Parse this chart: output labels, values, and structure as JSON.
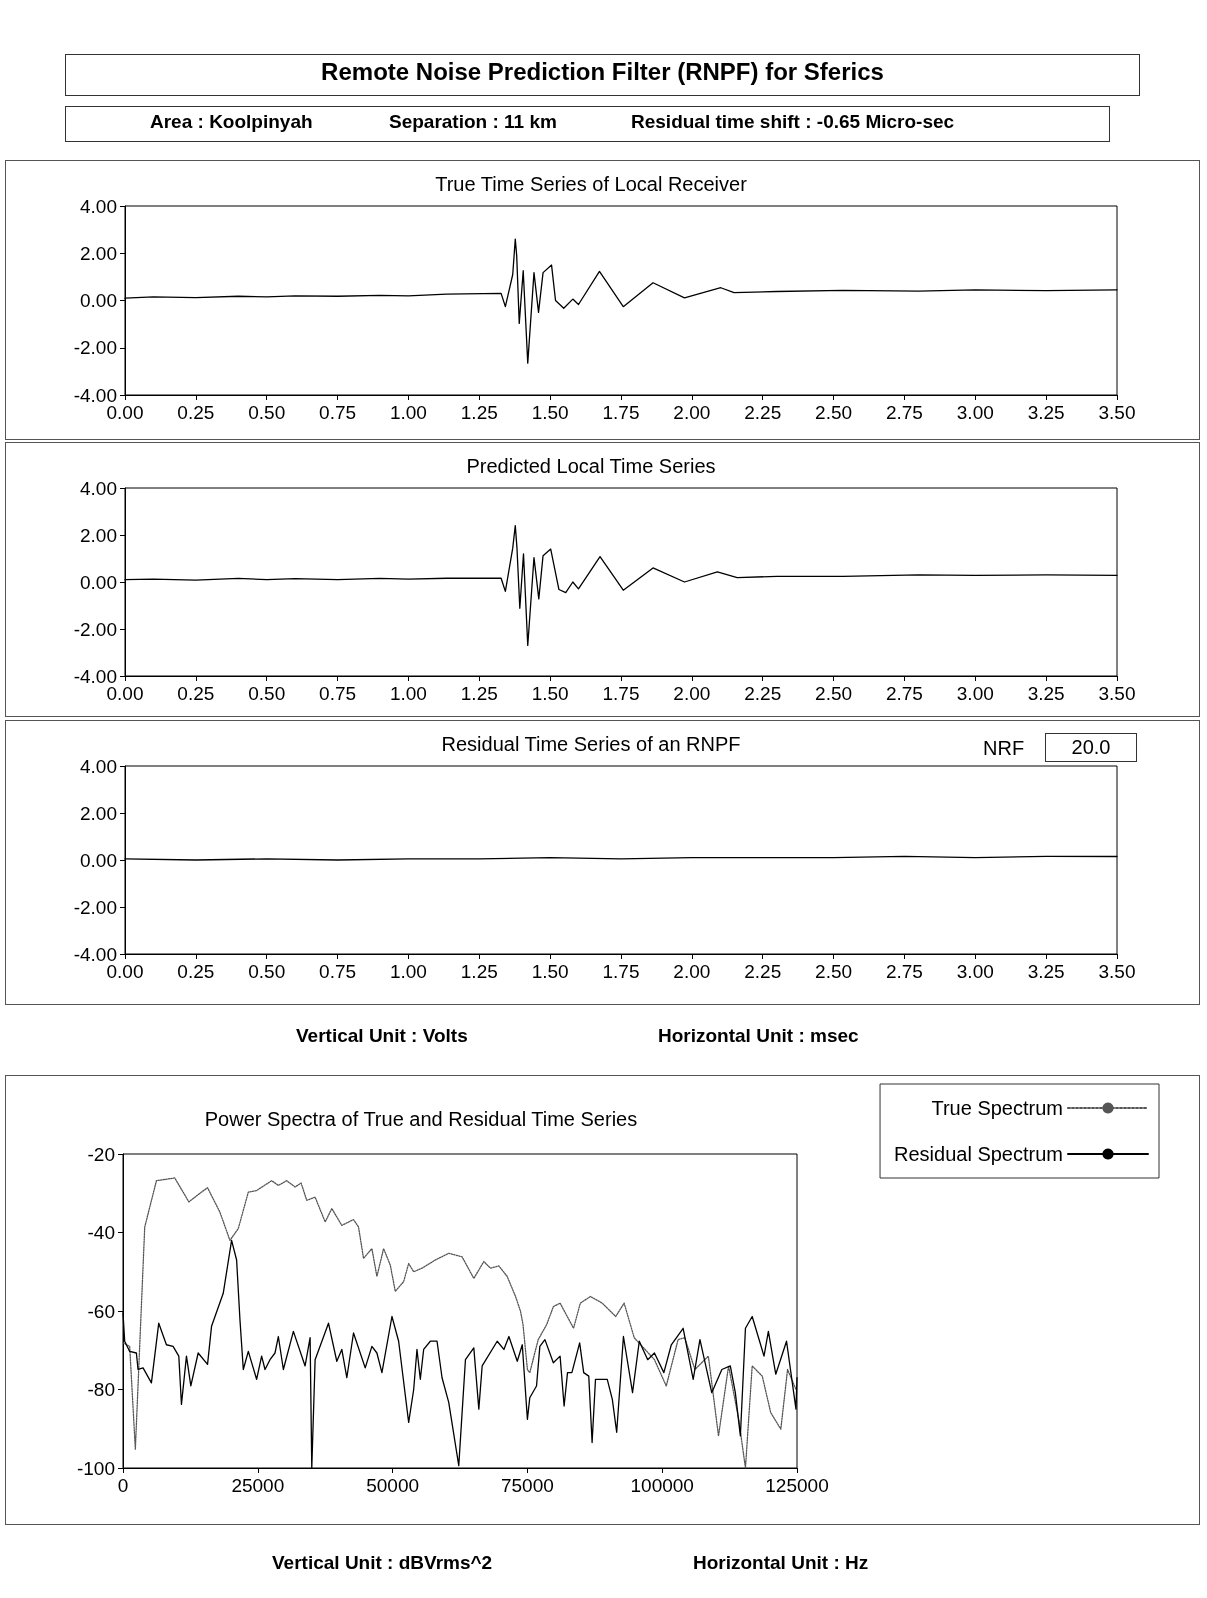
{
  "chart_data": [
    {
      "type": "line",
      "title": "True Time Series of Local Receiver",
      "annotations": [
        "Remote Noise Prediction Filter (RNPF) for Sferics",
        "Area : Koolpinyah",
        "Separation : 11 km",
        "Residual time shift : -0.65 Micro-sec"
      ],
      "marker": "none",
      "line_style": "solid",
      "grid": false,
      "legend": false,
      "xlim": [
        0,
        3.5
      ],
      "xticks": [
        {
          "value": 0,
          "label": "0.00"
        },
        {
          "value": 0.25,
          "label": "0.25"
        },
        {
          "value": 0.5,
          "label": "0.50"
        },
        {
          "value": 0.75,
          "label": "0.75"
        },
        {
          "value": 1,
          "label": "1.00"
        },
        {
          "value": 1.25,
          "label": "1.25"
        },
        {
          "value": 1.5,
          "label": "1.50"
        },
        {
          "value": 1.75,
          "label": "1.75"
        },
        {
          "value": 2,
          "label": "2.00"
        },
        {
          "value": 2.25,
          "label": "2.25"
        },
        {
          "value": 2.5,
          "label": "2.50"
        },
        {
          "value": 2.75,
          "label": "2.75"
        },
        {
          "value": 3,
          "label": "3.00"
        },
        {
          "value": 3.25,
          "label": "3.25"
        },
        {
          "value": 3.5,
          "label": "3.50"
        }
      ],
      "ylim": [
        -4,
        4
      ],
      "yticks": [
        {
          "value": -4,
          "label": "-4.00"
        },
        {
          "value": -2,
          "label": "-2.00"
        },
        {
          "value": 0,
          "label": "0.00"
        },
        {
          "value": 2,
          "label": "2.00"
        },
        {
          "value": 4,
          "label": "4.00"
        }
      ],
      "series": [
        {
          "color": "#000000",
          "x": [
            0,
            0.1,
            0.25,
            0.4,
            0.5,
            0.6,
            0.75,
            0.9,
            1.0,
            1.135,
            1.327,
            1.342,
            1.368,
            1.377,
            1.382,
            1.391,
            1.405,
            1.421,
            1.443,
            1.459,
            1.475,
            1.505,
            1.519,
            1.548,
            1.58,
            1.6,
            1.674,
            1.758,
            1.863,
            1.974,
            2.102,
            2.149,
            2.3,
            2.533,
            2.8,
            3.0,
            3.25,
            3.5
          ],
          "values": [
            0.1,
            0.15,
            0.12,
            0.18,
            0.15,
            0.2,
            0.18,
            0.22,
            0.2,
            0.27,
            0.3,
            -0.26,
            1.1,
            2.6,
            1.9,
            -0.97,
            1.26,
            -2.65,
            1.18,
            -0.5,
            1.18,
            1.5,
            0.0,
            -0.33,
            0.06,
            -0.17,
            1.23,
            -0.26,
            0.75,
            0.11,
            0.54,
            0.33,
            0.38,
            0.43,
            0.4,
            0.45,
            0.42,
            0.45
          ]
        }
      ]
    },
    {
      "type": "line",
      "title": "Predicted Local Time Series",
      "marker": "none",
      "line_style": "solid",
      "grid": false,
      "legend": false,
      "xlim": [
        0,
        3.5
      ],
      "xticks": [
        {
          "value": 0,
          "label": "0.00"
        },
        {
          "value": 0.25,
          "label": "0.25"
        },
        {
          "value": 0.5,
          "label": "0.50"
        },
        {
          "value": 0.75,
          "label": "0.75"
        },
        {
          "value": 1,
          "label": "1.00"
        },
        {
          "value": 1.25,
          "label": "1.25"
        },
        {
          "value": 1.5,
          "label": "1.50"
        },
        {
          "value": 1.75,
          "label": "1.75"
        },
        {
          "value": 2,
          "label": "2.00"
        },
        {
          "value": 2.25,
          "label": "2.25"
        },
        {
          "value": 2.5,
          "label": "2.50"
        },
        {
          "value": 2.75,
          "label": "2.75"
        },
        {
          "value": 3,
          "label": "3.00"
        },
        {
          "value": 3.25,
          "label": "3.25"
        },
        {
          "value": 3.5,
          "label": "3.50"
        }
      ],
      "ylim": [
        -4,
        4
      ],
      "yticks": [
        {
          "value": -4,
          "label": "-4.00"
        },
        {
          "value": -2,
          "label": "-2.00"
        },
        {
          "value": 0,
          "label": "0.00"
        },
        {
          "value": 2,
          "label": "2.00"
        },
        {
          "value": 4,
          "label": "4.00"
        }
      ],
      "series": [
        {
          "color": "#000000",
          "x": [
            0,
            0.1,
            0.25,
            0.4,
            0.5,
            0.6,
            0.75,
            0.9,
            1.0,
            1.135,
            1.327,
            1.342,
            1.368,
            1.377,
            1.383,
            1.393,
            1.406,
            1.421,
            1.443,
            1.46,
            1.475,
            1.502,
            1.531,
            1.555,
            1.58,
            1.6,
            1.676,
            1.758,
            1.863,
            1.974,
            2.09,
            2.16,
            2.3,
            2.533,
            2.8,
            3.0,
            3.25,
            3.5
          ],
          "values": [
            0.1,
            0.12,
            0.08,
            0.15,
            0.1,
            0.14,
            0.1,
            0.15,
            0.12,
            0.16,
            0.16,
            -0.4,
            1.44,
            2.4,
            1.44,
            -1.12,
            1.2,
            -2.7,
            1.04,
            -0.72,
            1.12,
            1.4,
            -0.32,
            -0.45,
            0.0,
            -0.29,
            1.08,
            -0.35,
            0.6,
            0.0,
            0.43,
            0.19,
            0.24,
            0.24,
            0.3,
            0.28,
            0.3,
            0.28
          ]
        }
      ]
    },
    {
      "type": "line",
      "title": "Residual Time Series of an RNPF",
      "annotations": [
        "NRF",
        "20.0",
        "Vertical Unit : Volts",
        "Horizontal Unit : msec"
      ],
      "marker": "none",
      "line_style": "solid",
      "grid": false,
      "legend": false,
      "xlim": [
        0,
        3.5
      ],
      "xticks": [
        {
          "value": 0,
          "label": "0.00"
        },
        {
          "value": 0.25,
          "label": "0.25"
        },
        {
          "value": 0.5,
          "label": "0.50"
        },
        {
          "value": 0.75,
          "label": "0.75"
        },
        {
          "value": 1,
          "label": "1.00"
        },
        {
          "value": 1.25,
          "label": "1.25"
        },
        {
          "value": 1.5,
          "label": "1.50"
        },
        {
          "value": 1.75,
          "label": "1.75"
        },
        {
          "value": 2,
          "label": "2.00"
        },
        {
          "value": 2.25,
          "label": "2.25"
        },
        {
          "value": 2.5,
          "label": "2.50"
        },
        {
          "value": 2.75,
          "label": "2.75"
        },
        {
          "value": 3,
          "label": "3.00"
        },
        {
          "value": 3.25,
          "label": "3.25"
        },
        {
          "value": 3.5,
          "label": "3.50"
        }
      ],
      "ylim": [
        -4,
        4
      ],
      "yticks": [
        {
          "value": -4,
          "label": "-4.00"
        },
        {
          "value": -2,
          "label": "-2.00"
        },
        {
          "value": 0,
          "label": "0.00"
        },
        {
          "value": 2,
          "label": "2.00"
        },
        {
          "value": 4,
          "label": "4.00"
        }
      ],
      "series": [
        {
          "color": "#000000",
          "x": [
            0,
            0.25,
            0.5,
            0.75,
            1.0,
            1.25,
            1.5,
            1.75,
            2.0,
            2.25,
            2.5,
            2.75,
            3.0,
            3.25,
            3.5
          ],
          "values": [
            0.05,
            0.0,
            0.05,
            0.0,
            0.05,
            0.05,
            0.1,
            0.05,
            0.1,
            0.1,
            0.1,
            0.15,
            0.1,
            0.15,
            0.15
          ]
        }
      ]
    },
    {
      "type": "line",
      "title": "Power Spectra of True and Residual Time Series",
      "annotations": [
        "Vertical Unit : dBVrms^2",
        "Horizontal Unit : Hz"
      ],
      "marker": "none",
      "grid": false,
      "legend": "right",
      "xlim": [
        0,
        125000
      ],
      "xticks": [
        0,
        25000,
        50000,
        75000,
        100000,
        125000
      ],
      "ylim": [
        -100,
        -20
      ],
      "yticks": [
        -100,
        -80,
        -60,
        -40,
        -20
      ],
      "series": [
        {
          "name": "True Spectrum",
          "color": "#555555",
          "line_style": "dotted",
          "x": [
            0,
            1240,
            2290,
            4030,
            6200,
            9600,
            12210,
            14560,
            15680,
            17970,
            19830,
            21380,
            23240,
            24780,
            27570,
            28810,
            30360,
            31910,
            33030,
            34080,
            35630,
            37490,
            38730,
            40580,
            42750,
            43680,
            44610,
            46160,
            47090,
            48330,
            49570,
            50500,
            52050,
            52980,
            53910,
            55450,
            57930,
            60410,
            62890,
            65060,
            66920,
            68160,
            69700,
            71250,
            72800,
            73730,
            74190,
            75000,
            75440,
            77000,
            78560,
            79810,
            81060,
            83560,
            84810,
            86690,
            88880,
            91380,
            92940,
            94810,
            98560,
            100750,
            102940,
            104190,
            106060,
            108560,
            110440,
            112310,
            114190,
            115440,
            116690,
            118560,
            120130,
            122000,
            123250,
            124810
          ],
          "values": [
            -68.1,
            -69.0,
            -95.2,
            -38.6,
            -26.8,
            -26.1,
            -32.2,
            -29.7,
            -28.6,
            -34.8,
            -42.0,
            -39.0,
            -29.7,
            -29.3,
            -26.8,
            -28.0,
            -26.8,
            -28.4,
            -27.4,
            -31.8,
            -31.0,
            -37.3,
            -33.9,
            -38.2,
            -36.7,
            -38.6,
            -46.6,
            -44.1,
            -51.2,
            -44.1,
            -48.3,
            -55.0,
            -52.5,
            -47.9,
            -50.0,
            -49.1,
            -47.0,
            -45.3,
            -46.2,
            -51.7,
            -47.4,
            -49.1,
            -48.5,
            -51.2,
            -56.3,
            -60.1,
            -63.5,
            -74.9,
            -75.7,
            -67.3,
            -63.5,
            -58.9,
            -58.0,
            -64.4,
            -58.0,
            -56.3,
            -58.0,
            -61.4,
            -58.0,
            -66.8,
            -72.4,
            -79.1,
            -67.3,
            -66.8,
            -74.9,
            -71.5,
            -91.8,
            -74.0,
            -87.6,
            -100,
            -74.0,
            -76.6,
            -85.9,
            -90.1,
            -74.9,
            -80.0
          ]
        },
        {
          "name": "Residual Spectrum",
          "color": "#000000",
          "line_style": "solid",
          "x": [
            0,
            310,
            1240,
            2480,
            2790,
            3720,
            5270,
            6630,
            8050,
            9290,
            10350,
            10840,
            11770,
            12580,
            13940,
            15680,
            16420,
            18590,
            20140,
            21070,
            21690,
            22310,
            23240,
            24780,
            25710,
            26340,
            27260,
            28190,
            28810,
            29740,
            31600,
            33770,
            34700,
            35010,
            35630,
            38110,
            39650,
            40580,
            41510,
            42750,
            44920,
            46160,
            47090,
            48020,
            49880,
            51120,
            52980,
            53910,
            54520,
            55140,
            55760,
            57000,
            58240,
            59170,
            60410,
            62270,
            63510,
            65060,
            65990,
            66610,
            69400,
            70640,
            71570,
            73120,
            74050,
            75000,
            75440,
            76690,
            77310,
            78250,
            79810,
            81060,
            81810,
            82440,
            83250,
            84690,
            85440,
            86380,
            87000,
            87630,
            89810,
            90750,
            91560,
            92810,
            94500,
            95750,
            97310,
            98560,
            100310,
            101690,
            103880,
            105750,
            107000,
            109190,
            111060,
            112630,
            113560,
            114500,
            115440,
            116690,
            118880,
            119690,
            121060,
            123060,
            124810,
            125000
          ],
          "values": [
            -60.5,
            -67.7,
            -70.3,
            -70.7,
            -74.9,
            -74.5,
            -78.3,
            -63.1,
            -68.6,
            -69.0,
            -71.5,
            -83.8,
            -71.5,
            -79.1,
            -70.7,
            -73.6,
            -63.9,
            -55.5,
            -42.0,
            -47.0,
            -62.2,
            -74.9,
            -70.3,
            -77.4,
            -71.5,
            -74.9,
            -72.4,
            -70.7,
            -66.5,
            -74.9,
            -65.2,
            -74.0,
            -66.8,
            -100,
            -72.4,
            -63.1,
            -72.8,
            -69.8,
            -77.0,
            -65.6,
            -74.5,
            -69.0,
            -70.7,
            -75.7,
            -61.4,
            -67.7,
            -88.4,
            -80.0,
            -69.8,
            -77.4,
            -69.8,
            -67.7,
            -67.7,
            -77.0,
            -83.3,
            -99.4,
            -72.4,
            -69.4,
            -85.0,
            -74.0,
            -67.7,
            -69.8,
            -66.5,
            -72.8,
            -68.6,
            -87.6,
            -82.1,
            -79.1,
            -69.0,
            -67.3,
            -73.2,
            -71.5,
            -84.2,
            -75.7,
            -75.7,
            -68.1,
            -75.7,
            -76.6,
            -93.5,
            -77.4,
            -77.4,
            -82.5,
            -90.9,
            -66.5,
            -80.8,
            -67.7,
            -72.4,
            -70.7,
            -75.7,
            -68.6,
            -64.4,
            -77.4,
            -67.3,
            -80.8,
            -74.9,
            -74.0,
            -80.8,
            -91.8,
            -64.4,
            -61.4,
            -71.5,
            -65.2,
            -76.1,
            -67.7,
            -85.0,
            -77.0
          ]
        }
      ]
    }
  ]
}
